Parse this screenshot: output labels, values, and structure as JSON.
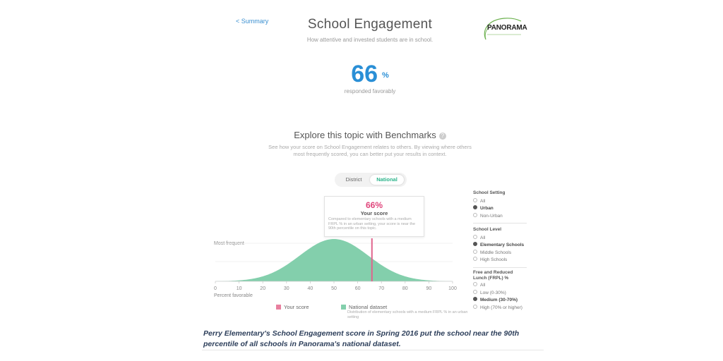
{
  "header": {
    "back_link": "< Summary",
    "title": "School Engagement",
    "subtitle": "How attentive and invested students are in school.",
    "logo_text": "PANORAMA"
  },
  "score": {
    "value": "66",
    "unit": "%",
    "caption": "responded favorably"
  },
  "benchmarks": {
    "title": "Explore this topic with Benchmarks",
    "help_icon": "?",
    "description": "See how your score on School Engagement relates to others. By viewing where others most frequently scored, you can better put your results in context.",
    "toggle": {
      "district": "District",
      "national": "National",
      "active": "national"
    }
  },
  "tooltip": {
    "value": "66%",
    "label": "Your score",
    "text": "Compared to elementary schools with a medium FRPL % in an urban setting, your score is near the 90th percentile on this topic."
  },
  "chart_data": {
    "type": "area",
    "y_label": "Most frequent",
    "xlabel": "Percent favorable",
    "xlim": [
      0,
      100
    ],
    "x_ticks": [
      "0",
      "10",
      "20",
      "30",
      "40",
      "50",
      "60",
      "70",
      "80",
      "90",
      "100"
    ],
    "distribution": {
      "mean": 50,
      "sd": 14.5
    },
    "your_score": 66,
    "colors": {
      "distribution": "#83cfac",
      "your_score": "#e0648d",
      "axis": "#cccccc"
    },
    "legend": [
      {
        "name": "Your score",
        "color": "#e8809f"
      },
      {
        "name": "National dataset",
        "color": "#83cfac",
        "description": "Distribution of elementary schools with a medium FRPL % in an urban setting"
      }
    ]
  },
  "filters": [
    {
      "heading": "School Setting",
      "options": [
        "All",
        "Urban",
        "Non-Urban"
      ],
      "selected": 1
    },
    {
      "heading": "School Level",
      "options": [
        "All",
        "Elementary Schools",
        "Middle Schools",
        "High Schools"
      ],
      "selected": 1
    },
    {
      "heading": "Free and Reduced Lunch (FRPL) %",
      "options": [
        "All",
        "Low (0-30%)",
        "Medium (30-70%)",
        "High (70% or higher)"
      ],
      "selected": 2
    }
  ],
  "caption": "Perry Elementary's School Engagement score in Spring 2016 put the school near the 90th percentile of all schools in Panorama's national dataset."
}
